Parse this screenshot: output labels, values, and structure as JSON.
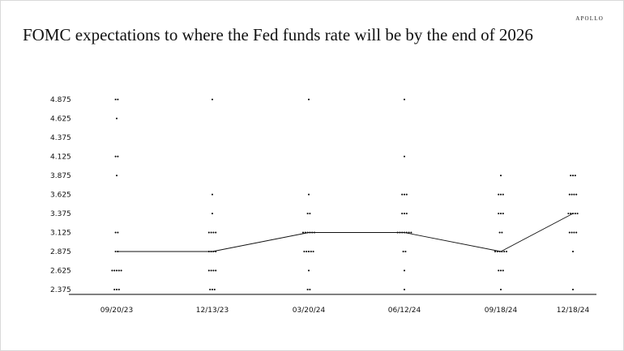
{
  "brand": "APOLLO",
  "title": "FOMC expectations to where the Fed funds rate will be by the end of 2026",
  "chart_data": {
    "type": "scatter",
    "title": "FOMC expectations to where the Fed funds rate will be by the end of 2026",
    "xlabel": "",
    "ylabel": "",
    "categories": [
      "09/20/23",
      "12/13/23",
      "03/20/24",
      "06/12/24",
      "09/18/24",
      "12/18/24"
    ],
    "y_ticks": [
      "4.875",
      "4.625",
      "4.375",
      "4.125",
      "3.875",
      "3.625",
      "3.375",
      "3.125",
      "2.875",
      "2.625",
      "2.375"
    ],
    "ylim": [
      2.375,
      4.875
    ],
    "grid": false,
    "dots": [
      {
        "date": "09/20/23",
        "counts": {
          "4.875": 2,
          "4.625": 1,
          "4.125": 2,
          "3.875": 1,
          "3.125": 2,
          "2.875": 2,
          "2.625": 5,
          "2.375": 3
        }
      },
      {
        "date": "12/13/23",
        "counts": {
          "4.875": 1,
          "3.625": 1,
          "3.375": 1,
          "3.125": 4,
          "2.875": 4,
          "2.625": 4,
          "2.375": 3
        }
      },
      {
        "date": "03/20/24",
        "counts": {
          "4.875": 1,
          "3.625": 1,
          "3.375": 2,
          "3.125": 6,
          "2.875": 5,
          "2.625": 1,
          "2.375": 2
        }
      },
      {
        "date": "06/12/24",
        "counts": {
          "4.875": 1,
          "4.125": 1,
          "3.625": 3,
          "3.375": 3,
          "3.125": 7,
          "2.875": 2,
          "2.625": 1,
          "2.375": 1
        }
      },
      {
        "date": "09/18/24",
        "counts": {
          "3.875": 1,
          "3.625": 3,
          "3.375": 3,
          "3.125": 2,
          "2.875": 6,
          "2.625": 3,
          "2.375": 1
        }
      },
      {
        "date": "12/18/24",
        "counts": {
          "3.875": 3,
          "3.625": 4,
          "3.375": 5,
          "3.125": 4,
          "2.875": 1,
          "2.375": 1
        }
      }
    ],
    "median_line": {
      "x": [
        "09/20/23",
        "12/13/23",
        "03/20/24",
        "06/12/24",
        "09/18/24",
        "12/18/24"
      ],
      "y": [
        2.875,
        2.875,
        3.125,
        3.125,
        2.875,
        3.375
      ]
    }
  }
}
